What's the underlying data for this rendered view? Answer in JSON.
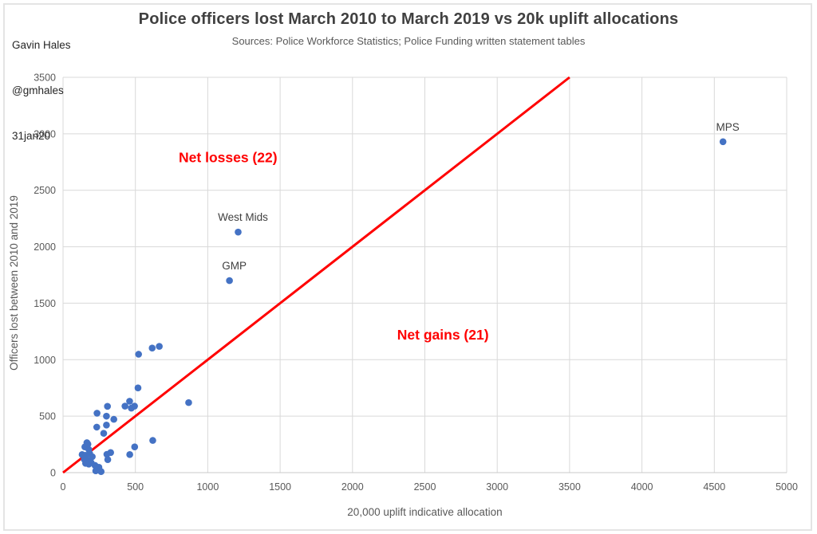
{
  "attribution": {
    "lines": [
      "Gavin Hales",
      "@gmhales",
      "31jan20"
    ]
  },
  "chart_data": {
    "type": "scatter",
    "title": "Police officers lost March 2010 to March 2019 vs 20k uplift allocations",
    "subtitle": "Sources: Police Workforce Statistics; Police Funding written statement tables",
    "xlabel": "20,000 uplift indicative allocation",
    "ylabel": "Officers lost between 2010 and 2019",
    "xlim": [
      0,
      5000
    ],
    "ylim": [
      0,
      3500
    ],
    "x_ticks": [
      0,
      500,
      1000,
      1500,
      2000,
      2500,
      3000,
      3500,
      4000,
      4500,
      5000
    ],
    "y_ticks": [
      0,
      500,
      1000,
      1500,
      2000,
      2500,
      3000,
      3500
    ],
    "grid": true,
    "legend": "none",
    "identity_line": {
      "x1": 0,
      "y1": 0,
      "x2": 3500,
      "y2": 3500
    },
    "annotations": [
      {
        "text": "Net losses (22)",
        "x": 1140,
        "y": 2790
      },
      {
        "text": "Net gains (21)",
        "x": 2625,
        "y": 1220
      }
    ],
    "labeled_points": [
      {
        "label": "MPS",
        "x": 4560,
        "y": 2930
      },
      {
        "label": "West Mids",
        "x": 1210,
        "y": 2130
      },
      {
        "label": "GMP",
        "x": 1150,
        "y": 1700
      }
    ],
    "points": [
      [
        522,
        1048
      ],
      [
        616,
        1103
      ],
      [
        665,
        1118
      ],
      [
        518,
        750
      ],
      [
        868,
        620
      ],
      [
        428,
        589
      ],
      [
        460,
        632
      ],
      [
        472,
        571
      ],
      [
        494,
        589
      ],
      [
        307,
        587
      ],
      [
        235,
        526
      ],
      [
        300,
        500
      ],
      [
        351,
        472
      ],
      [
        233,
        403
      ],
      [
        300,
        421
      ],
      [
        281,
        348
      ],
      [
        620,
        285
      ],
      [
        495,
        228
      ],
      [
        461,
        160
      ],
      [
        303,
        162
      ],
      [
        329,
        178
      ],
      [
        309,
        115
      ],
      [
        165,
        265
      ],
      [
        172,
        252
      ],
      [
        151,
        228
      ],
      [
        178,
        205
      ],
      [
        132,
        160
      ],
      [
        156,
        153
      ],
      [
        184,
        169
      ],
      [
        202,
        141
      ],
      [
        147,
        118
      ],
      [
        170,
        111
      ],
      [
        156,
        82
      ],
      [
        178,
        75
      ],
      [
        194,
        89
      ],
      [
        221,
        64
      ],
      [
        248,
        47
      ],
      [
        242,
        30
      ],
      [
        226,
        16
      ],
      [
        263,
        9
      ]
    ],
    "colors": {
      "point": "#4472C4",
      "identity_line": "#FF0000",
      "annotation_text": "#FF0000",
      "gridline": "#D9D9D9",
      "axis_line": "#C9C9C9",
      "tick_text": "#595959",
      "axis_title_text": "#595959",
      "point_label_text": "#404040",
      "title_text": "#404040"
    }
  }
}
